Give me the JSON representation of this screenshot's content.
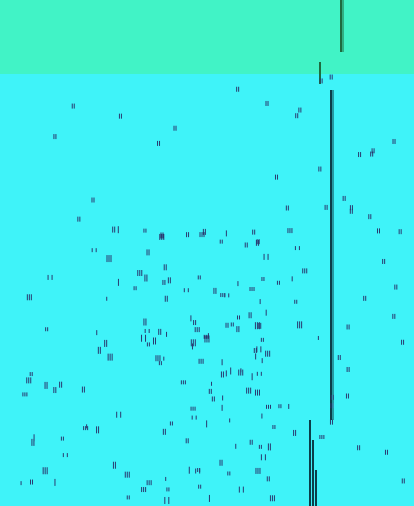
{
  "colors": {
    "background": "#3ff3f9",
    "top_band": "#41f3c6",
    "glyph": "#2a3a70",
    "line_dark": "#0b3f4a",
    "line_green": "#1e6b3f"
  },
  "glyph_field": {
    "description_count": 0
  }
}
